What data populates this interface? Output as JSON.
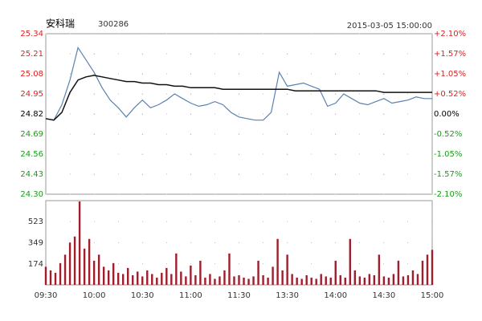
{
  "header": {
    "name": "安科瑞",
    "code": "300286",
    "time": "2015-03-05 15:00:00"
  },
  "chart_data": [
    {
      "type": "line",
      "x": [
        0,
        5,
        10,
        15,
        20,
        25,
        30,
        35,
        40,
        45,
        50,
        55,
        60,
        65,
        70,
        75,
        80,
        85,
        90,
        95,
        100,
        105,
        110,
        115,
        120,
        125,
        130,
        135,
        140,
        145,
        150,
        155,
        160,
        165,
        170,
        175,
        180,
        185,
        190,
        195,
        200,
        205,
        210,
        215,
        220,
        225,
        230,
        235,
        240
      ],
      "series": [
        {
          "color": "#5b82b0",
          "values": [
            24.79,
            24.78,
            24.88,
            25.04,
            25.25,
            25.17,
            25.09,
            24.99,
            24.91,
            24.86,
            24.8,
            24.86,
            24.91,
            24.86,
            24.88,
            24.91,
            24.95,
            24.92,
            24.89,
            24.87,
            24.88,
            24.9,
            24.88,
            24.83,
            24.8,
            24.79,
            24.78,
            24.78,
            24.83,
            25.09,
            25.0,
            25.01,
            25.02,
            25.0,
            24.98,
            24.87,
            24.89,
            24.95,
            24.92,
            24.89,
            24.88,
            24.9,
            24.92,
            24.89,
            24.9,
            24.91,
            24.93,
            24.92,
            24.92
          ]
        },
        {
          "color": "#111111",
          "values": [
            24.79,
            24.78,
            24.83,
            24.96,
            25.04,
            25.06,
            25.07,
            25.06,
            25.05,
            25.04,
            25.03,
            25.03,
            25.02,
            25.02,
            25.01,
            25.01,
            25.0,
            25.0,
            24.99,
            24.99,
            24.99,
            24.99,
            24.98,
            24.98,
            24.98,
            24.98,
            24.98,
            24.98,
            24.98,
            24.98,
            24.98,
            24.97,
            24.97,
            24.97,
            24.97,
            24.97,
            24.97,
            24.97,
            24.97,
            24.97,
            24.97,
            24.97,
            24.96,
            24.96,
            24.96,
            24.96,
            24.96,
            24.96,
            24.96
          ]
        }
      ],
      "xlim": [
        0,
        240
      ],
      "xticks": [
        0,
        30,
        60,
        90,
        120,
        150,
        180,
        210,
        240
      ],
      "ylim": [
        24.3,
        25.34
      ],
      "yticks": [
        {
          "value": 24.3,
          "label": "24.30"
        },
        24.43,
        24.56,
        24.69,
        24.82,
        24.95,
        {
          "value": 25.08,
          "label": "25.08"
        },
        25.21,
        25.34
      ],
      "y2lim": [
        -2.1,
        2.1
      ],
      "y2ticks": [
        {
          "value": -2.1,
          "label": "-2.10%"
        },
        {
          "value": -1.57,
          "label": "-1.57%"
        },
        {
          "value": -1.05,
          "label": "-1.05%"
        },
        {
          "value": -0.52,
          "label": "-0.52%"
        },
        {
          "value": 0,
          "label": "0.00%"
        },
        {
          "value": 0.52,
          "label": "+0.52%"
        },
        {
          "value": 1.05,
          "label": "+1.05%"
        },
        {
          "value": 1.57,
          "label": "+1.57%"
        },
        {
          "value": 2.1,
          "label": "+2.10%"
        }
      ],
      "up_color": "#e02020",
      "down_color": "#1a9a1a",
      "grid": true
    },
    {
      "type": "bar",
      "x": [
        0,
        3,
        6,
        9,
        12,
        15,
        18,
        21,
        24,
        27,
        30,
        33,
        36,
        39,
        42,
        45,
        48,
        51,
        54,
        57,
        60,
        63,
        66,
        69,
        72,
        75,
        78,
        81,
        84,
        87,
        90,
        93,
        96,
        99,
        102,
        105,
        108,
        111,
        114,
        117,
        120,
        123,
        126,
        129,
        132,
        135,
        138,
        141,
        144,
        147,
        150,
        153,
        156,
        159,
        162,
        165,
        168,
        171,
        174,
        177,
        180,
        183,
        186,
        189,
        192,
        195,
        198,
        201,
        204,
        207,
        210,
        213,
        216,
        219,
        222,
        225,
        228,
        231,
        234,
        237,
        240
      ],
      "values": [
        150,
        120,
        100,
        180,
        250,
        350,
        400,
        690,
        300,
        380,
        200,
        250,
        150,
        120,
        180,
        100,
        90,
        140,
        80,
        110,
        70,
        120,
        90,
        60,
        100,
        140,
        90,
        260,
        110,
        70,
        160,
        80,
        200,
        60,
        90,
        50,
        70,
        120,
        260,
        70,
        80,
        60,
        50,
        70,
        200,
        80,
        60,
        150,
        380,
        120,
        250,
        90,
        60,
        50,
        80,
        60,
        50,
        90,
        70,
        60,
        200,
        80,
        60,
        380,
        120,
        70,
        60,
        90,
        80,
        250,
        70,
        60,
        90,
        200,
        70,
        80,
        120,
        90,
        200,
        250,
        290
      ],
      "color": "#a01e2c",
      "xlim": [
        0,
        240
      ],
      "xticks": [
        {
          "value": 0,
          "label": "09:30"
        },
        {
          "value": 30,
          "label": "10:00"
        },
        {
          "value": 60,
          "label": "10:30"
        },
        {
          "value": 90,
          "label": "11:00"
        },
        {
          "value": 120,
          "label": "11:30"
        },
        {
          "value": 150,
          "label": "13:30"
        },
        {
          "value": 180,
          "label": "14:00"
        },
        {
          "value": 210,
          "label": "14:30"
        },
        {
          "value": 240,
          "label": "15:00"
        }
      ],
      "ylim": [
        0,
        697
      ],
      "yticks": [
        174,
        349,
        523
      ],
      "grid": true
    }
  ]
}
